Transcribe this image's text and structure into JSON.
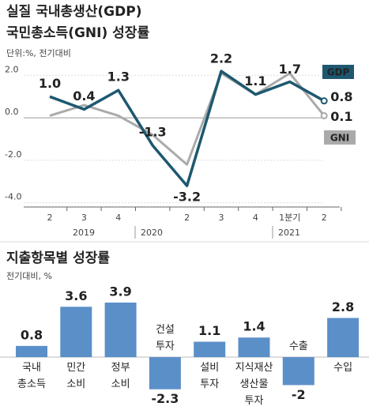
{
  "chart_data": [
    {
      "type": "line",
      "title": "실질 국내총생산(GDP)",
      "title_line2": "국민총소득(GNI) 성장률",
      "subtitle": "단위:%, 전기대비",
      "categories": [
        "2",
        "3",
        "4",
        null,
        "2",
        "3",
        "4",
        "1분기",
        "2"
      ],
      "year_labels": [
        "2019",
        "2020",
        "2021"
      ],
      "ylim": [
        -4.2,
        2.5
      ],
      "yticks": [
        {
          "value": 2,
          "label": "2.0"
        },
        {
          "value": 0,
          "label": "0.0"
        },
        {
          "value": -2,
          "label": "-2.0"
        },
        {
          "value": -4,
          "label": "-4.0"
        }
      ],
      "grid": true,
      "series": [
        {
          "name": "GDP",
          "color": "#1d5870",
          "values": [
            1.0,
            0.4,
            1.3,
            -1.3,
            -3.2,
            2.2,
            1.1,
            1.7,
            0.8
          ],
          "value_labels": [
            "1.0",
            "0.4",
            "1.3",
            "-1.3",
            "-3.2",
            "2.2",
            "1.1",
            "1.7",
            "0.8"
          ]
        },
        {
          "name": "GNI",
          "color": "#aaaaaa",
          "values": [
            0.1,
            0.6,
            0.1,
            -0.8,
            -2.2,
            2.1,
            1.1,
            2.1,
            0.1
          ],
          "value_labels": [
            null,
            null,
            null,
            null,
            null,
            null,
            null,
            null,
            "0.1"
          ]
        }
      ]
    },
    {
      "type": "bar",
      "title": "지출항목별 성장률",
      "subtitle": "전기대비, %",
      "categories": [
        "국내\n총소득",
        "민간\n소비",
        "정부\n소비",
        "건설\n투자",
        "설비\n투자",
        "지식재산\n생산물\n투자",
        "수출",
        "수입"
      ],
      "values": [
        0.8,
        3.6,
        3.9,
        -2.3,
        1.1,
        1.4,
        -2.0,
        2.8
      ],
      "color": "#5b8fc8"
    }
  ]
}
